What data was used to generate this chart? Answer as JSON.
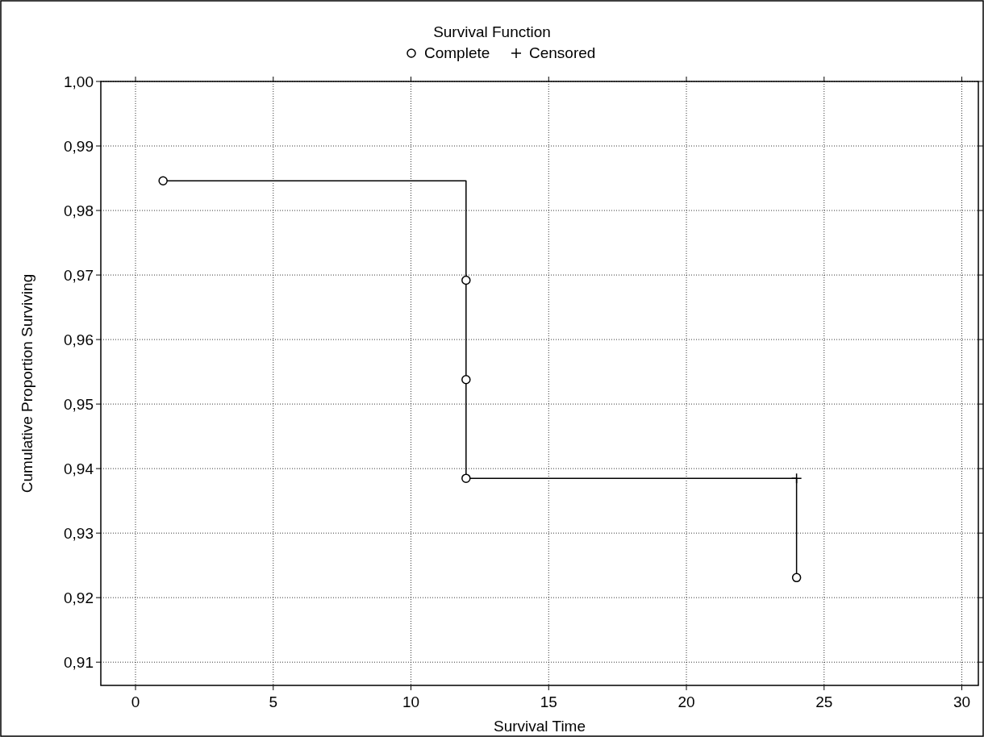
{
  "chart_data": {
    "type": "scatter",
    "title": "Survival Function",
    "xlabel": "Survival Time",
    "ylabel": "Cumulative Proportion Surviving",
    "xlim": [
      -1.26,
      30.6
    ],
    "ylim": [
      0.9064,
      1.0
    ],
    "xticks": [
      0,
      5,
      10,
      15,
      20,
      25,
      30
    ],
    "yticks": [
      {
        "value": 0.91,
        "label": "0,91"
      },
      {
        "value": 0.92,
        "label": "0,92"
      },
      {
        "value": 0.93,
        "label": "0,93"
      },
      {
        "value": 0.94,
        "label": "0,94"
      },
      {
        "value": 0.95,
        "label": "0,95"
      },
      {
        "value": 0.96,
        "label": "0,96"
      },
      {
        "value": 0.97,
        "label": "0,97"
      },
      {
        "value": 0.98,
        "label": "0,98"
      },
      {
        "value": 0.99,
        "label": "0,99"
      },
      {
        "value": 1.0,
        "label": "1,00"
      }
    ],
    "grid": true,
    "legend": "top",
    "series": [
      {
        "type": "step",
        "color": "#000000",
        "marker": "none",
        "x": [
          1,
          12,
          24
        ],
        "values": [
          0.9846,
          0.9385,
          0.9231
        ]
      },
      {
        "name": "Complete",
        "color": "#000000",
        "marker": "circle",
        "x": [
          1,
          12,
          12,
          12,
          24
        ],
        "values": [
          0.9846,
          0.9692,
          0.9538,
          0.9385,
          0.9231
        ]
      },
      {
        "name": "Censored",
        "color": "#000000",
        "marker": "cross",
        "x": [
          24
        ],
        "values": [
          0.9385
        ]
      }
    ]
  }
}
